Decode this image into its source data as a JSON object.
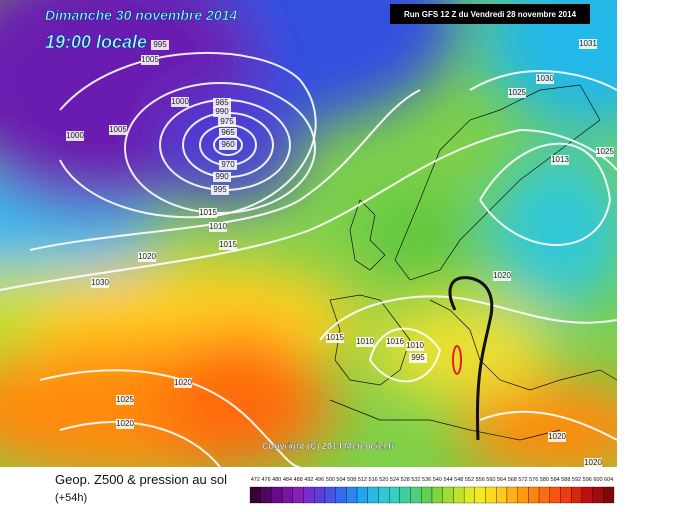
{
  "header": {
    "date": "Dimanche 30 novembre 2014",
    "time": "19:00 locale",
    "run": "Run GFS 12 Z du Vendredi 28 novembre 2014"
  },
  "isobar_labels": [
    "995",
    "1005",
    "1000",
    "985",
    "990",
    "975",
    "965",
    "960",
    "970",
    "990",
    "995",
    "1005",
    "1000",
    "1015",
    "1010",
    "1015",
    "1020",
    "1030",
    "1031",
    "1030",
    "1025",
    "1013",
    "1025",
    "1020",
    "1015",
    "1010",
    "1016",
    "1010",
    "995",
    "1020",
    "1025",
    "1020",
    "1020",
    "1020"
  ],
  "copyright": "Copyright (C) 2014 Meteociel.fr",
  "legend": {
    "title": "Geop. Z500 & pression au sol",
    "lead": "(+54h)",
    "scale": [
      472,
      476,
      480,
      484,
      488,
      492,
      496,
      500,
      504,
      508,
      512,
      516,
      520,
      524,
      528,
      532,
      536,
      540,
      544,
      548,
      552,
      556,
      560,
      564,
      568,
      572,
      576,
      580,
      584,
      588,
      592,
      596,
      600,
      604
    ]
  }
}
